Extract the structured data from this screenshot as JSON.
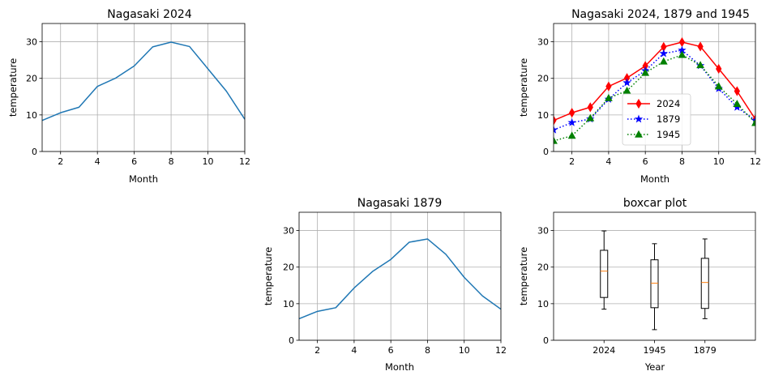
{
  "chart_data": [
    {
      "type": "line",
      "title": "Nagasaki 2024",
      "xlabel": "Month",
      "ylabel": "temperature",
      "xlim": [
        1,
        12
      ],
      "ylim": [
        0,
        35
      ],
      "xticks": [
        2,
        4,
        6,
        8,
        10,
        12
      ],
      "yticks": [
        0,
        10,
        20,
        30
      ],
      "grid": true,
      "series": [
        {
          "color": "#1f77b4",
          "x": [
            1,
            2,
            3,
            4,
            5,
            6,
            7,
            8,
            9,
            10,
            11,
            12
          ],
          "values": [
            8.5,
            10.6,
            12.1,
            17.8,
            20.1,
            23.4,
            28.6,
            29.9,
            28.7,
            22.6,
            16.5,
            8.8
          ]
        }
      ]
    },
    {
      "type": "line",
      "title": "Nagasaki 2024, 1879 and 1945",
      "xlabel": "Month",
      "ylabel": "temperature",
      "xlim": [
        1,
        12
      ],
      "ylim": [
        0,
        35
      ],
      "xticks": [
        2,
        4,
        6,
        8,
        10,
        12
      ],
      "yticks": [
        0,
        10,
        20,
        30
      ],
      "grid": true,
      "legend": "center-right",
      "series": [
        {
          "name": "2024",
          "color": "#ff0000",
          "linestyle": "solid",
          "marker": "thin-diamond",
          "x": [
            1,
            2,
            3,
            4,
            5,
            6,
            7,
            8,
            9,
            10,
            11,
            12
          ],
          "values": [
            8.5,
            10.6,
            12.1,
            17.8,
            20.1,
            23.4,
            28.6,
            29.9,
            28.7,
            22.6,
            16.5,
            8.8
          ]
        },
        {
          "name": "1879",
          "color": "#0000ff",
          "linestyle": "dotted",
          "marker": "star",
          "x": [
            1,
            2,
            3,
            4,
            5,
            6,
            7,
            8,
            9,
            10,
            11,
            12
          ],
          "values": [
            5.9,
            7.9,
            8.9,
            14.3,
            18.8,
            22.1,
            26.8,
            27.7,
            23.5,
            17.2,
            12.1,
            8.5
          ]
        },
        {
          "name": "1945",
          "color": "#008000",
          "linestyle": "dotted",
          "marker": "triangle",
          "x": [
            1,
            2,
            3,
            4,
            5,
            6,
            7,
            8,
            9,
            10,
            11,
            12
          ],
          "values": [
            2.9,
            4.3,
            9.1,
            14.6,
            16.6,
            21.5,
            24.6,
            26.4,
            23.6,
            17.8,
            13.0,
            7.8
          ]
        }
      ]
    },
    {
      "type": "line",
      "title": "Nagasaki 1879",
      "xlabel": "Month",
      "ylabel": "temperature",
      "xlim": [
        1,
        12
      ],
      "ylim": [
        0,
        35
      ],
      "xticks": [
        2,
        4,
        6,
        8,
        10,
        12
      ],
      "yticks": [
        0,
        10,
        20,
        30
      ],
      "grid": true,
      "series": [
        {
          "color": "#1f77b4",
          "x": [
            1,
            2,
            3,
            4,
            5,
            6,
            7,
            8,
            9,
            10,
            11,
            12
          ],
          "values": [
            5.9,
            7.9,
            8.9,
            14.3,
            18.8,
            22.1,
            26.8,
            27.7,
            23.5,
            17.2,
            12.1,
            8.5
          ]
        }
      ]
    },
    {
      "type": "box",
      "title": "boxcar plot",
      "xlabel": "Year",
      "ylabel": "temperature",
      "ylim": [
        0,
        35
      ],
      "yticks": [
        0,
        10,
        20,
        30
      ],
      "grid": true,
      "categories": [
        "2024",
        "1945",
        "1879"
      ],
      "boxes": [
        {
          "min": 8.5,
          "q1": 11.7,
          "median": 18.9,
          "q3": 24.6,
          "max": 29.9
        },
        {
          "min": 2.9,
          "q1": 8.9,
          "median": 15.6,
          "q3": 22.0,
          "max": 26.4
        },
        {
          "min": 5.9,
          "q1": 8.7,
          "median": 15.8,
          "q3": 22.4,
          "max": 27.7
        }
      ],
      "median_color": "#ff7f0e"
    }
  ]
}
